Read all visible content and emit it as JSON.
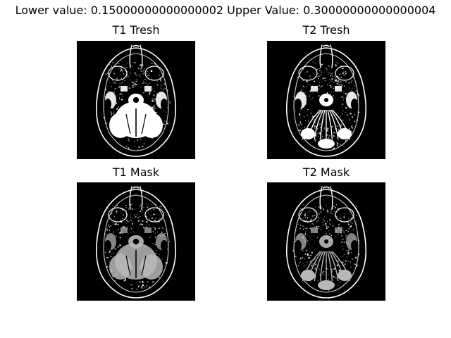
{
  "figure": {
    "suptitle": "Lower value: 0.15000000000000002 Upper Value: 0.30000000000000004"
  },
  "panels": [
    {
      "id": "t1-tresh",
      "title": "T1 Tresh",
      "variant": "tresh",
      "modality": "t1"
    },
    {
      "id": "t2-tresh",
      "title": "T2 Tresh",
      "variant": "tresh",
      "modality": "t2"
    },
    {
      "id": "t1-mask",
      "title": "T1 Mask",
      "variant": "mask",
      "modality": "t1"
    },
    {
      "id": "t2-mask",
      "title": "T2 Mask",
      "variant": "mask",
      "modality": "t2"
    }
  ],
  "colors": {
    "background": "#000000",
    "foreground": "#ffffff",
    "mask_gray": "#b9b9b9"
  }
}
